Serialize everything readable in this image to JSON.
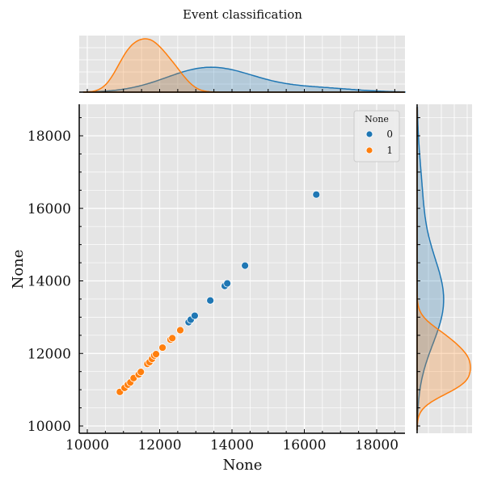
{
  "title": "Event classification",
  "joint": {
    "xlabel": "None",
    "ylabel": "None",
    "xticks": [
      "10000",
      "12000",
      "14000",
      "16000",
      "18000"
    ],
    "yticks": [
      "10000",
      "12000",
      "14000",
      "16000",
      "18000"
    ]
  },
  "legend": {
    "title": "None",
    "entries": [
      {
        "label": "0",
        "color": "#1f77b4"
      },
      {
        "label": "1",
        "color": "#ff7f0e"
      }
    ]
  },
  "colors": {
    "background": "#e5e5e5",
    "grid": "#ffffff",
    "class0": "#1f77b4",
    "class1": "#ff7f0e"
  },
  "chart_data": {
    "type": "scatter",
    "title": "Event classification",
    "xlabel": "None",
    "ylabel": "None",
    "xlim": [
      9800,
      18800
    ],
    "ylim": [
      9800,
      18900
    ],
    "grid": true,
    "legend_position": "upper right",
    "marginals": "kde",
    "series": [
      {
        "name": "0",
        "color": "#1f77b4",
        "points": [
          [
            12800,
            12860
          ],
          [
            12860,
            12930
          ],
          [
            12970,
            13040
          ],
          [
            13400,
            13460
          ],
          [
            13800,
            13860
          ],
          [
            13870,
            13930
          ],
          [
            14360,
            14420
          ],
          [
            16330,
            16380
          ]
        ]
      },
      {
        "name": "1",
        "color": "#ff7f0e",
        "points": [
          [
            10900,
            10940
          ],
          [
            11030,
            11050
          ],
          [
            11120,
            11140
          ],
          [
            11190,
            11200
          ],
          [
            11280,
            11320
          ],
          [
            11420,
            11420
          ],
          [
            11480,
            11490
          ],
          [
            11660,
            11710
          ],
          [
            11720,
            11760
          ],
          [
            11790,
            11850
          ],
          [
            11850,
            11940
          ],
          [
            11900,
            11980
          ],
          [
            12080,
            12160
          ],
          [
            12300,
            12380
          ],
          [
            12350,
            12420
          ],
          [
            12570,
            12640
          ]
        ]
      }
    ]
  }
}
